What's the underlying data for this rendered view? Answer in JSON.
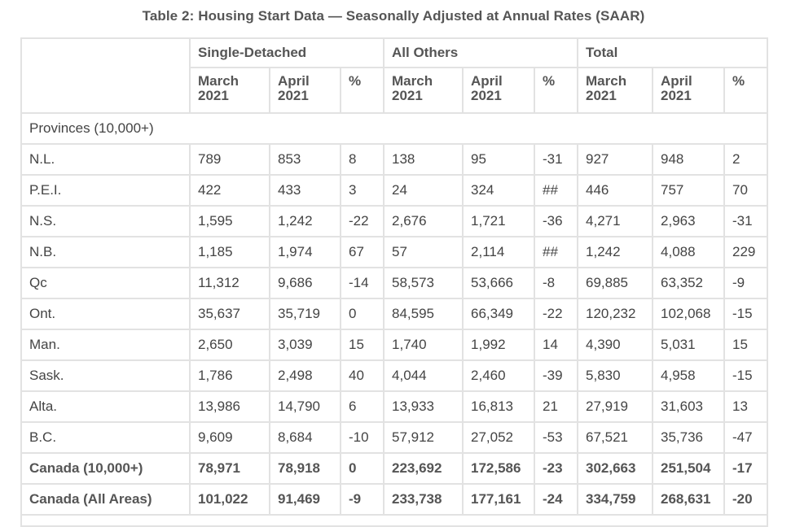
{
  "caption": "Table 2: Housing Start Data — Seasonally Adjusted at Annual Rates (SAAR)",
  "column_groups": [
    "Single-Detached",
    "All Others",
    "Total"
  ],
  "period_headers": [
    "March 2021",
    "April 2021",
    "%",
    "March 2021",
    "April 2021",
    "%",
    "March 2021",
    "April 2021",
    "%"
  ],
  "section_label": "Provinces (10,000+)",
  "rows": [
    {
      "label": "N.L.",
      "cells": [
        "789",
        "853",
        "8",
        "138",
        "95",
        "-31",
        "927",
        "948",
        "2"
      ]
    },
    {
      "label": "P.E.I.",
      "cells": [
        "422",
        "433",
        "3",
        "24",
        "324",
        "##",
        "446",
        "757",
        "70"
      ]
    },
    {
      "label": "N.S.",
      "cells": [
        "1,595",
        "1,242",
        "-22",
        "2,676",
        "1,721",
        "-36",
        "4,271",
        "2,963",
        "-31"
      ]
    },
    {
      "label": "N.B.",
      "cells": [
        "1,185",
        "1,974",
        "67",
        "57",
        "2,114",
        "##",
        "1,242",
        "4,088",
        "229"
      ]
    },
    {
      "label": "Qc",
      "cells": [
        "11,312",
        "9,686",
        "-14",
        "58,573",
        "53,666",
        "-8",
        "69,885",
        "63,352",
        "-9"
      ]
    },
    {
      "label": "Ont.",
      "cells": [
        "35,637",
        "35,719",
        "0",
        "84,595",
        "66,349",
        "-22",
        "120,232",
        "102,068",
        "-15"
      ]
    },
    {
      "label": "Man.",
      "cells": [
        "2,650",
        "3,039",
        "15",
        "1,740",
        "1,992",
        "14",
        "4,390",
        "5,031",
        "15"
      ]
    },
    {
      "label": "Sask.",
      "cells": [
        "1,786",
        "2,498",
        "40",
        "4,044",
        "2,460",
        "-39",
        "5,830",
        "4,958",
        "-15"
      ]
    },
    {
      "label": "Alta.",
      "cells": [
        "13,986",
        "14,790",
        "6",
        "13,933",
        "16,813",
        "21",
        "27,919",
        "31,603",
        "13"
      ]
    },
    {
      "label": "B.C.",
      "cells": [
        "9,609",
        "8,684",
        "-10",
        "57,912",
        "27,052",
        "-53",
        "67,521",
        "35,736",
        "-47"
      ]
    }
  ],
  "totals": [
    {
      "label": "Canada (10,000+)",
      "cells": [
        "78,971",
        "78,918",
        "0",
        "223,692",
        "172,586",
        "-23",
        "302,663",
        "251,504",
        "-17"
      ]
    },
    {
      "label": "Canada (All Areas)",
      "cells": [
        "101,022",
        "91,469",
        "-9",
        "233,738",
        "177,161",
        "-24",
        "334,759",
        "268,631",
        "-20"
      ]
    }
  ]
}
